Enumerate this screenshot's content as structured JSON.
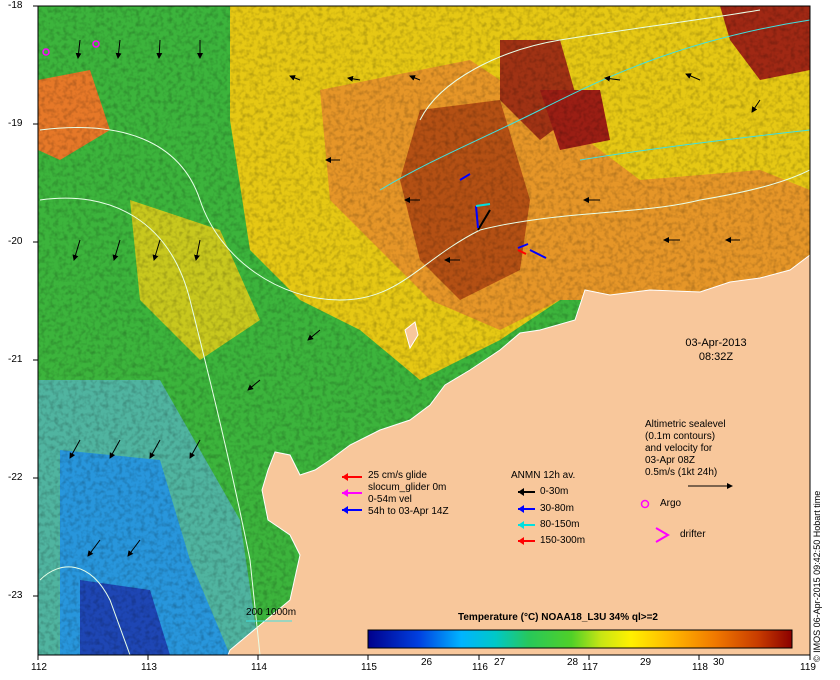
{
  "map": {
    "x_ticks": [
      "112",
      "113",
      "114",
      "115",
      "116",
      "117",
      "118",
      "119"
    ],
    "y_ticks": [
      "-18",
      "-19",
      "-20",
      "-21",
      "-22",
      "-23"
    ],
    "date": "03-Apr-2013",
    "time": "08:32Z",
    "land_color": "#f8c79b",
    "credit": "© IMOS 06-Apr-2015 09:42:50 Hobart time"
  },
  "altimetry_note": {
    "line1": "Altimetric sealevel",
    "line2": "(0.1m contours)",
    "line3": "and velocity for",
    "line4": "03-Apr 08Z",
    "line5": "0.5m/s (1kt 24h)"
  },
  "glider_legend": {
    "line1": "25 cm/s glide",
    "line2": "slocum_glider 0m",
    "line3": "0-54m vel",
    "line4": "54h to 03-Apr 14Z",
    "colors": [
      "#ff0000",
      "#ff00ff",
      "#0000ff"
    ]
  },
  "anmn_legend": {
    "title": "ANMN 12h av.",
    "items": [
      {
        "label": "0-30m",
        "color": "#000000"
      },
      {
        "label": "30-80m",
        "color": "#0000ff"
      },
      {
        "label": "80-150m",
        "color": "#00e0e0"
      },
      {
        "label": "150-300m",
        "color": "#ff0000"
      }
    ]
  },
  "markers": {
    "argo": "Argo",
    "drifter": "drifter"
  },
  "isobath_label": "200  1000m",
  "colorbar": {
    "title": "Temperature (°C) NOAA18_L3U 34% ql>=2",
    "ticks": [
      "26",
      "27",
      "28",
      "29",
      "30"
    ],
    "colors": [
      "#00008b",
      "#0032d2",
      "#0096ff",
      "#00c8e6",
      "#28c878",
      "#3cc83c",
      "#a0dc1e",
      "#fff000",
      "#ffc800",
      "#ff9600",
      "#e65a00",
      "#b42800",
      "#8b0000"
    ]
  }
}
